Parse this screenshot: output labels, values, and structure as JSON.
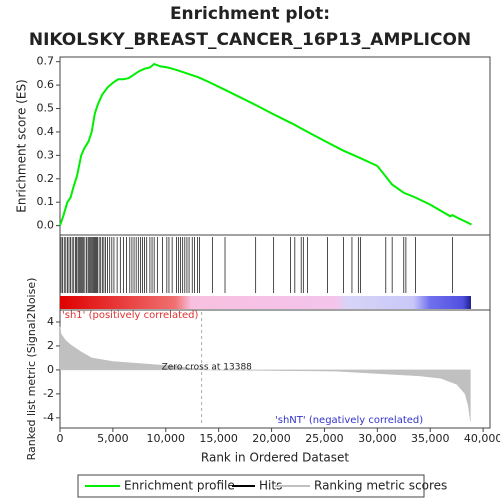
{
  "chart_data": [
    {
      "type": "line",
      "title": "Enrichment plot:",
      "subtitle": "NIKOLSKY_BREAST_CANCER_16P13_AMPLICON",
      "ylabel": "Enrichment score (ES)",
      "xlim": [
        0,
        40650
      ],
      "ylim": [
        -0.04,
        0.72
      ],
      "yticks": [
        {
          "value": 0,
          "label": "0.0"
        },
        0.1,
        0.2,
        0.3,
        0.4,
        0.5,
        0.6,
        0.7
      ],
      "series": [
        {
          "name": "Enrichment profile",
          "color": "#00ee00",
          "x": [
            0,
            300,
            700,
            1000,
            1300,
            1600,
            2000,
            2300,
            2700,
            3000,
            3300,
            3600,
            4000,
            4500,
            5000,
            5500,
            6000,
            6500,
            7000,
            7500,
            8000,
            8500,
            8900,
            9500,
            10200,
            11000,
            12000,
            13000,
            14000,
            15600,
            18500,
            20200,
            22000,
            23000,
            25300,
            26800,
            28300,
            30000,
            31400,
            32500,
            33600,
            35000,
            36900,
            37100,
            37500,
            38900
          ],
          "values": [
            0,
            0.04,
            0.1,
            0.12,
            0.17,
            0.21,
            0.3,
            0.33,
            0.36,
            0.4,
            0.48,
            0.52,
            0.56,
            0.59,
            0.61,
            0.625,
            0.625,
            0.63,
            0.645,
            0.66,
            0.67,
            0.675,
            0.69,
            0.68,
            0.675,
            0.665,
            0.65,
            0.635,
            0.615,
            0.58,
            0.515,
            0.475,
            0.435,
            0.41,
            0.355,
            0.32,
            0.29,
            0.255,
            0.175,
            0.14,
            0.12,
            0.09,
            0.04,
            0.045,
            0.035,
            0.005
          ]
        }
      ]
    },
    {
      "type": "hits",
      "xlim": [
        0,
        40650
      ],
      "series": [
        {
          "name": "Hits",
          "color": "#000000",
          "x": [
            100,
            250,
            400,
            550,
            700,
            850,
            1000,
            1150,
            1300,
            1450,
            1550,
            1700,
            1800,
            1900,
            2000,
            2100,
            2200,
            2350,
            2500,
            2650,
            2750,
            2850,
            2950,
            3050,
            3150,
            3250,
            3350,
            3450,
            3550,
            3700,
            3850,
            4000,
            4150,
            4300,
            4500,
            4700,
            4900,
            5100,
            5400,
            5700,
            6000,
            6300,
            6600,
            6800,
            7000,
            7200,
            7400,
            7600,
            7800,
            8000,
            8200,
            8500,
            8700,
            8900,
            9200,
            9700,
            10100,
            10300,
            10600,
            11000,
            11200,
            11400,
            11600,
            11800,
            12000,
            12200,
            12500,
            12700,
            13000,
            13200,
            14400,
            15600,
            18500,
            20200,
            21800,
            22200,
            22800,
            23000,
            23400,
            25300,
            26800,
            27600,
            28200,
            28400,
            30800,
            31400,
            32500,
            32700,
            33600,
            37100
          ]
        }
      ]
    },
    {
      "type": "area",
      "xlabel": "Rank in Ordered Dataset",
      "ylabel": "Ranked list metric (Signal2Noise)",
      "xlim": [
        0,
        40650
      ],
      "ylim": [
        -4.85,
        5.0
      ],
      "xticks": [
        0,
        {
          "value": 5000,
          "label": "5,000"
        },
        {
          "value": 10000,
          "label": "10,000"
        },
        {
          "value": 15000,
          "label": "15,000"
        },
        {
          "value": 20000,
          "label": "20,000"
        },
        {
          "value": 25000,
          "label": "25,000"
        },
        {
          "value": 30000,
          "label": "30,000"
        },
        {
          "value": 35000,
          "label": "35,000"
        },
        {
          "value": 40000,
          "label": "40,000"
        }
      ],
      "yticks": [
        4,
        2,
        0,
        -2,
        -4
      ],
      "series": [
        {
          "name": "Ranking metric scores",
          "color": "#c0c0c0",
          "x": [
            0,
            100,
            500,
            1000,
            2000,
            3000,
            5000,
            8000,
            11000,
            13388,
            26000,
            30000,
            34000,
            36000,
            37500,
            38300,
            38600,
            38800
          ],
          "values": [
            3.6,
            3.0,
            2.5,
            2.1,
            1.5,
            1.0,
            0.7,
            0.5,
            0.3,
            0,
            -0.1,
            -0.3,
            -0.5,
            -0.7,
            -1.2,
            -2.0,
            -3.0,
            -4.3
          ]
        }
      ],
      "annotation": {
        "text": "Zero cross at 13388",
        "x": 13388
      },
      "pos_label": {
        "text": "'sh1' (positively correlated)",
        "color": "#e03030"
      },
      "neg_label": {
        "text": "'shNT' (negatively correlated)",
        "color": "#3333cc"
      }
    }
  ]
}
